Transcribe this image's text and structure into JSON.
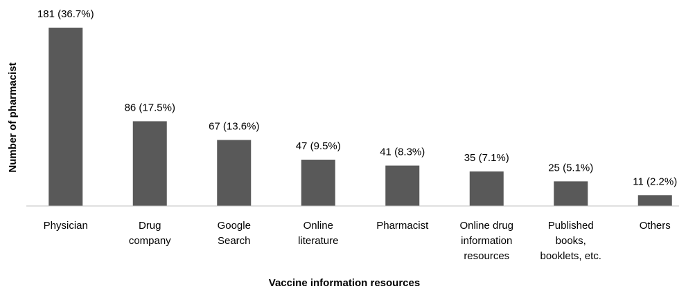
{
  "chart_data": {
    "type": "bar",
    "categories": [
      [
        "Physician"
      ],
      [
        "Drug",
        "company"
      ],
      [
        "Google",
        "Search"
      ],
      [
        "Online",
        "literature"
      ],
      [
        "Pharmacist"
      ],
      [
        "Online drug",
        "information",
        "resources"
      ],
      [
        "Published",
        "books,",
        "booklets, etc."
      ],
      [
        "Others"
      ]
    ],
    "values": [
      181,
      86,
      67,
      47,
      41,
      35,
      25,
      11
    ],
    "value_labels": [
      "181 (36.7%)",
      "86 (17.5%)",
      "67 (13.6%)",
      "47 (9.5%)",
      "41 (8.3%)",
      "35 (7.1%)",
      "25 (5.1%)",
      "11 (2.2%)"
    ],
    "color": "#595959",
    "y_label": "Number of pharmacist",
    "x_label": "Vaccine information resources"
  }
}
